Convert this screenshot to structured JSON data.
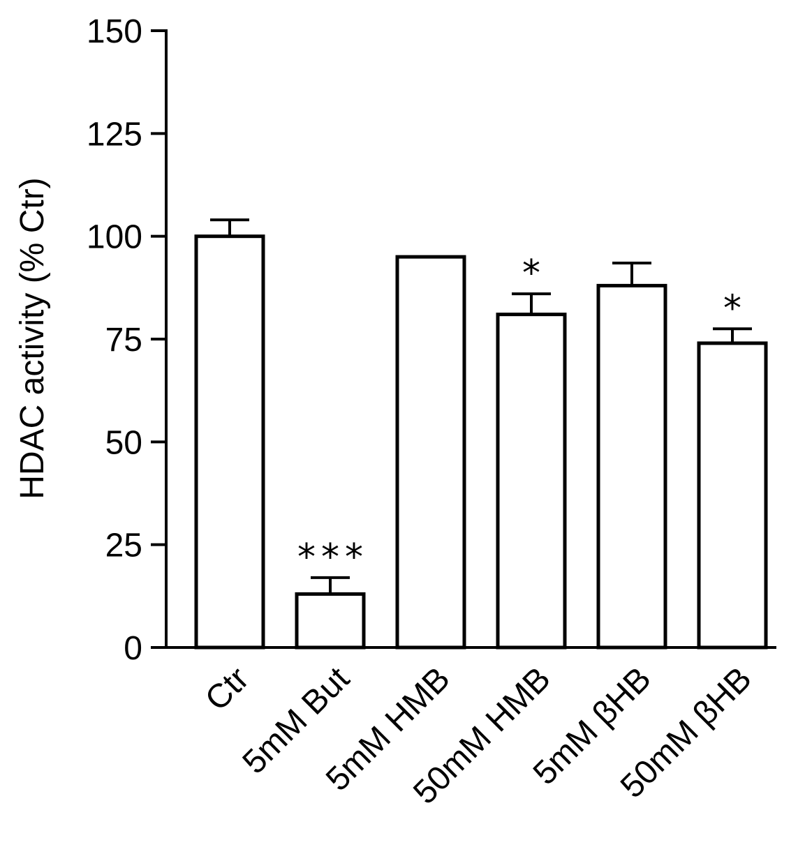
{
  "chart_data": {
    "type": "bar",
    "title": "",
    "xlabel": "",
    "ylabel": "HDAC activity (% Ctr)",
    "ylim": [
      0,
      150
    ],
    "yticks": [
      0,
      25,
      50,
      75,
      100,
      125,
      150
    ],
    "categories": [
      "Ctr",
      "5mM But",
      "5mM HMB",
      "50mM HMB",
      "5mM βHB",
      "50mM βHB"
    ],
    "values": [
      100,
      13,
      95,
      81,
      88,
      74
    ],
    "errors": [
      4,
      4,
      0,
      5,
      5.5,
      3.5
    ],
    "significance": [
      "",
      "***",
      "",
      "*",
      "",
      "*"
    ],
    "grid": false,
    "legend": "none",
    "colors": {
      "bar_fill": "#ffffff",
      "bar_stroke": "#000000"
    }
  }
}
